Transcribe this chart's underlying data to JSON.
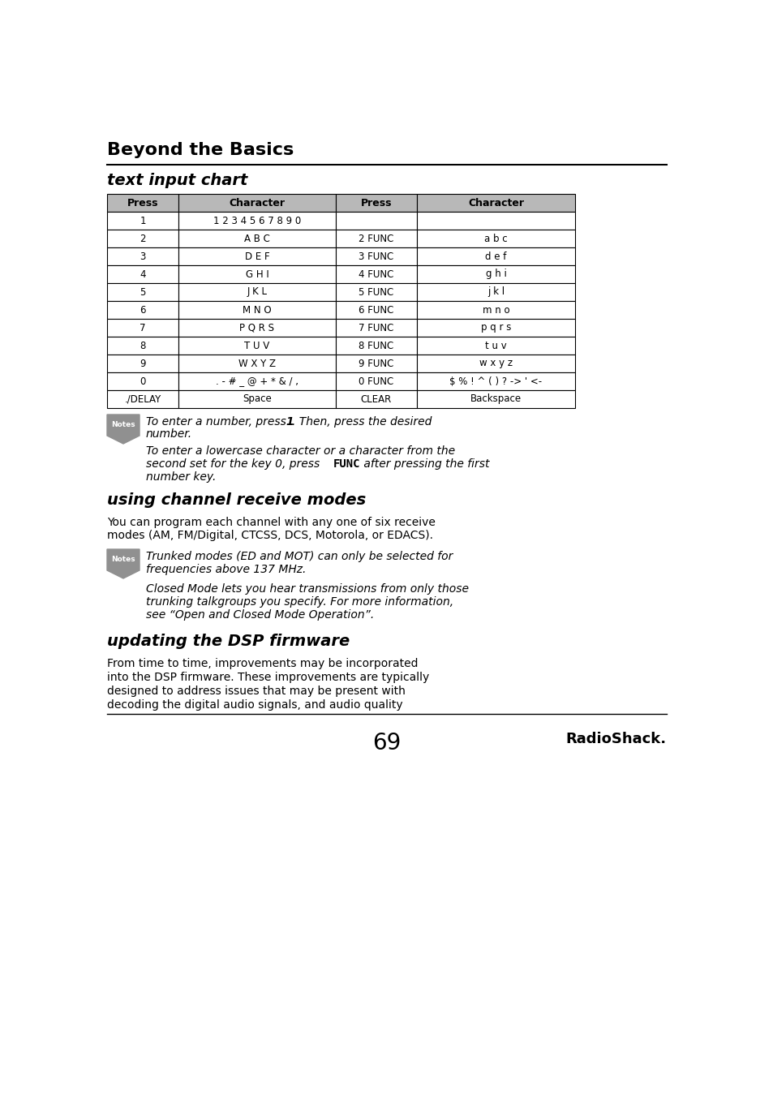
{
  "bg_color": "#ffffff",
  "section1_title": "Beyond the Basics",
  "subsection1_title": "text input chart",
  "table_headers": [
    "Press",
    "Character",
    "Press",
    "Character"
  ],
  "table_rows": [
    [
      "1",
      "1 2 3 4 5 6 7 8 9 0",
      "",
      ""
    ],
    [
      "2",
      "A B C",
      "2 FUNC",
      "a b c"
    ],
    [
      "3",
      "D E F",
      "3 FUNC",
      "d e f"
    ],
    [
      "4",
      "G H I",
      "4 FUNC",
      "g h i"
    ],
    [
      "5",
      "J K L",
      "5 FUNC",
      "j k l"
    ],
    [
      "6",
      "M N O",
      "6 FUNC",
      "m n o"
    ],
    [
      "7",
      "P Q R S",
      "7 FUNC",
      "p q r s"
    ],
    [
      "8",
      "T U V",
      "8 FUNC",
      "t u v"
    ],
    [
      "9",
      "W X Y Z",
      "9 FUNC",
      "w x y z"
    ],
    [
      "0",
      ". - # _ @ + * & / ,",
      "0 FUNC",
      "$ % ! ^ ( ) ? -> ' <-"
    ],
    [
      "./DELAY",
      "Space",
      "CLEAR",
      "Backspace"
    ]
  ],
  "table_header_bg": "#b8b8b8",
  "note1_line1": "To enter a number, press ",
  "note1_bold": "1",
  "note1_line1b": ". Then, press the desired",
  "note1_line2": "number.",
  "note2_line1": "To enter a lowercase character or a character from the",
  "note2_line2a": "second set for the key 0, press ",
  "note2_bold": "FUNC",
  "note2_line2b": " after pressing the first",
  "note2_line3": "number key.",
  "section2_title": "using channel receive modes",
  "section2_body1": "You can program each channel with any one of six receive",
  "section2_body2": "modes (AM, FM/Digital, CTCSS, DCS, Motorola, or EDACS).",
  "note3_line1": "Trunked modes (ED and MOT) can only be selected for",
  "note3_line2": "frequencies above 137 MHz.",
  "note4_line1": "Closed Mode lets you hear transmissions from only those",
  "note4_line2": "trunking talkgroups you specify. For more information,",
  "note4_line3": "see “Open and Closed Mode Operation”.",
  "section3_title": "updating the DSP firmware",
  "section3_body1": "From time to time, improvements may be incorporated",
  "section3_body2": "into the DSP firmware. These improvements are typically",
  "section3_body3": "designed to address issues that may be present with",
  "section3_body4": "decoding the digital audio signals, and audio quality",
  "page_number": "69",
  "brand": "RadioShack."
}
